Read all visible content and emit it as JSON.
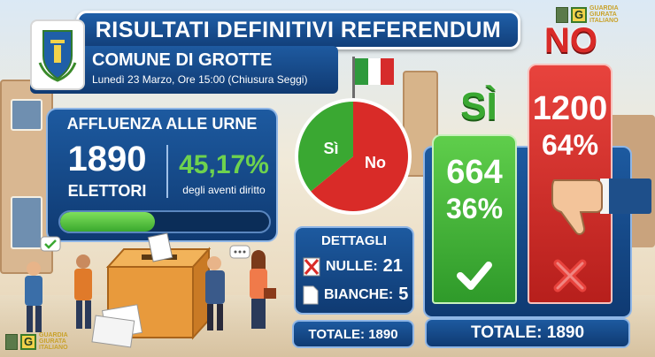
{
  "title": "RISULTATI DEFINITIVI REFERENDUM",
  "comune": {
    "name": "COMUNE DI GROTTE",
    "subtitle": "Lunedì 23 Marzo, Ore 15:00 (Chiusura Seggi)"
  },
  "affluenza": {
    "title": "AFFLUENZA ALLE URNE",
    "elettori": "1890",
    "elettori_label": "ELETTORI",
    "percent": "45,17%",
    "percent_label": "degli aventi diritto",
    "percent_value": 45.17
  },
  "pie": {
    "si_label": "Sì",
    "no_label": "No",
    "si_percent": 36,
    "no_percent": 64,
    "si_color": "#3aa832",
    "no_color": "#d92b28"
  },
  "dettagli": {
    "title": "DETTAGLI",
    "nulle_label": "NULLE:",
    "nulle_value": "21",
    "bianche_label": "BIANCHE:",
    "bianche_value": "5",
    "totale": "TOTALE: 1890"
  },
  "results": {
    "si_label": "SÌ",
    "si_votes": "664",
    "si_percent": "36%",
    "no_label": "NO",
    "no_votes": "1200",
    "no_percent": "64%",
    "totale": "TOTALE: 1890"
  },
  "logo": {
    "letter": "G",
    "text": "GUARDIA GIURATA ITALIANO"
  },
  "colors": {
    "primary_blue": "#1d5aa0",
    "green": "#3aa832",
    "red": "#d92b28",
    "flag_green": "#2e9a3c",
    "flag_white": "#ffffff",
    "flag_red": "#d62b2b"
  }
}
